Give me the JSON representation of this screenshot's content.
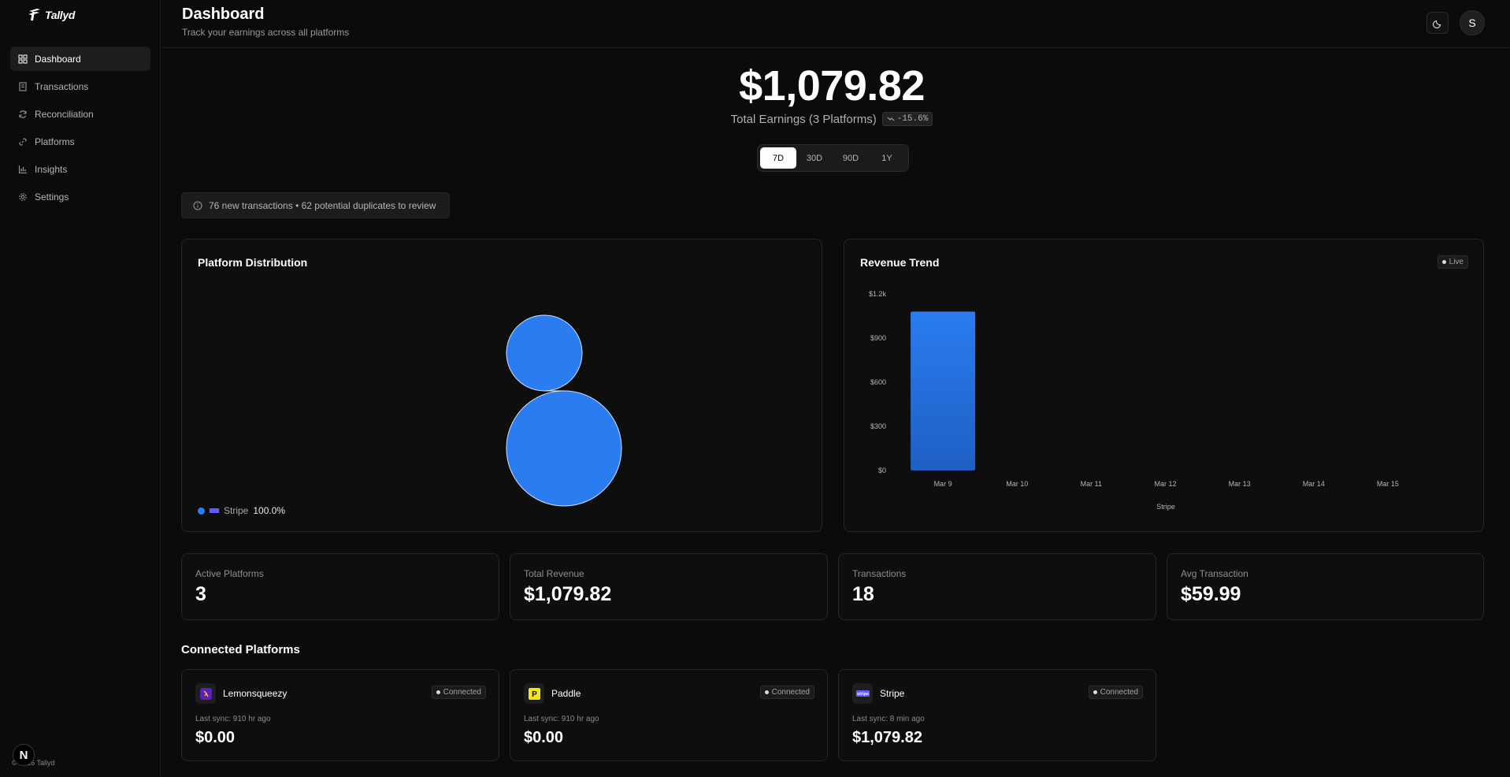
{
  "app": {
    "name": "Tallyd",
    "copyright": "© 2026 Tallyd"
  },
  "sidebar": {
    "items": [
      {
        "label": "Dashboard",
        "icon": "dashboard-icon",
        "active": true
      },
      {
        "label": "Transactions",
        "icon": "receipt-icon"
      },
      {
        "label": "Reconciliation",
        "icon": "refresh-icon"
      },
      {
        "label": "Platforms",
        "icon": "link-icon"
      },
      {
        "label": "Insights",
        "icon": "bar-chart-icon"
      },
      {
        "label": "Settings",
        "icon": "gear-icon"
      }
    ]
  },
  "header": {
    "title": "Dashboard",
    "subtitle": "Track your earnings across all platforms",
    "avatar_initial": "S"
  },
  "hero": {
    "amount": "$1,079.82",
    "label": "Total Earnings (3 Platforms)",
    "delta": "-15.6%"
  },
  "ranges": [
    {
      "label": "7D",
      "active": true
    },
    {
      "label": "30D"
    },
    {
      "label": "90D"
    },
    {
      "label": "1Y"
    }
  ],
  "alert": {
    "text": "76 new transactions • 62 potential duplicates to review"
  },
  "distribution": {
    "title": "Platform Distribution",
    "legend_name": "Stripe",
    "legend_pct": "100.0%"
  },
  "trend": {
    "title": "Revenue Trend",
    "badge": "Live"
  },
  "chart_data": [
    {
      "type": "pie",
      "title": "Platform Distribution",
      "categories": [
        "Stripe"
      ],
      "values": [
        100.0
      ],
      "colors": [
        "#2a7cf0"
      ],
      "legend": "bottom-left"
    },
    {
      "type": "bar",
      "title": "Revenue Trend",
      "categories": [
        "Mar 9",
        "Mar 10",
        "Mar 11",
        "Mar 12",
        "Mar 13",
        "Mar 14",
        "Mar 15"
      ],
      "series": [
        {
          "name": "Stripe",
          "values": [
            1079.82,
            0,
            0,
            0,
            0,
            0,
            0
          ]
        }
      ],
      "yticks": [
        "$0",
        "$300",
        "$600",
        "$900",
        "$1.2k"
      ],
      "ylim": [
        0,
        1200
      ],
      "color": "#2a7cf0",
      "legend": "bottom-center",
      "grid": false
    }
  ],
  "stats": [
    {
      "label": "Active Platforms",
      "value": "3"
    },
    {
      "label": "Total Revenue",
      "value": "$1,079.82"
    },
    {
      "label": "Transactions",
      "value": "18"
    },
    {
      "label": "Avg Transaction",
      "value": "$59.99"
    }
  ],
  "platforms_section": {
    "title": "Connected Platforms",
    "platforms": [
      {
        "name": "Lemonsqueezy",
        "status": "Connected",
        "sync": "Last sync: 910 hr ago",
        "amount": "$0.00",
        "icon": "lemonsqueezy-icon",
        "icon_bg": "#5b21b6",
        "icon_glyph": "🍋"
      },
      {
        "name": "Paddle",
        "status": "Connected",
        "sync": "Last sync: 910 hr ago",
        "amount": "$0.00",
        "icon": "paddle-icon",
        "icon_bg": "#f5e70a",
        "icon_glyph": "P"
      },
      {
        "name": "Stripe",
        "status": "Connected",
        "sync": "Last sync: 8 min ago",
        "amount": "$1,079.82",
        "icon": "stripe-icon",
        "icon_bg": "#635bff",
        "icon_glyph": "stripe"
      }
    ]
  }
}
